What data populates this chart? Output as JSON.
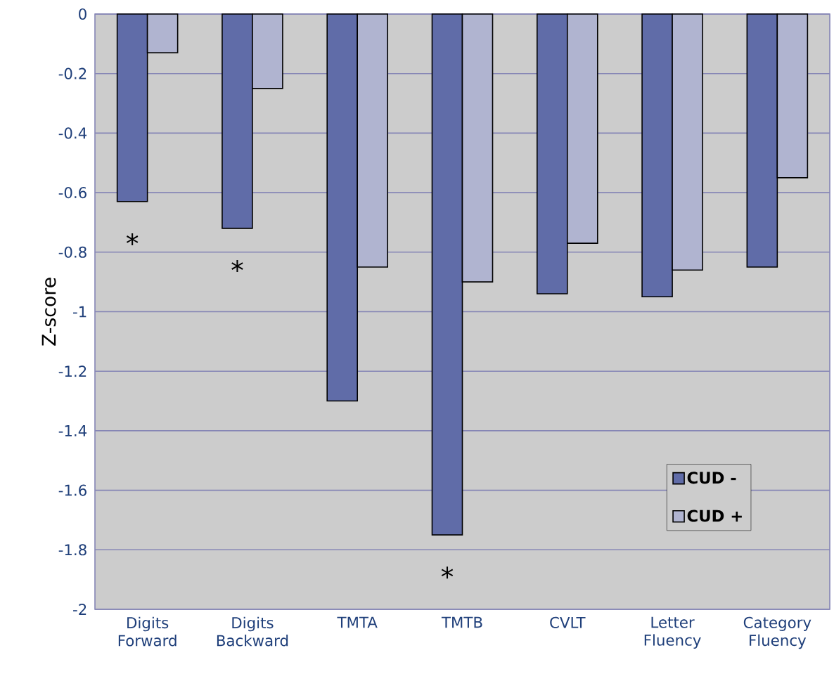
{
  "chart_data": {
    "type": "bar",
    "ylabel": "Z-score",
    "categories": [
      "Digits Forward",
      "Digits Backward",
      "TMTA",
      "TMTB",
      "CVLT",
      "Letter Fluency",
      "Category Fluency"
    ],
    "series": [
      {
        "name": "CUD -",
        "color": "#606ca8",
        "values": [
          -0.63,
          -0.72,
          -1.3,
          -1.75,
          -0.94,
          -0.95,
          -0.85
        ]
      },
      {
        "name": "CUD +",
        "color": "#b0b4d0",
        "values": [
          -0.13,
          -0.25,
          -0.85,
          -0.9,
          -0.77,
          -0.86,
          -0.55
        ]
      }
    ],
    "ylim": [
      -2,
      0
    ],
    "yticks": [
      -2,
      -1.8,
      -1.6,
      -1.4,
      -1.2,
      -1,
      -0.8,
      -0.6,
      -0.4,
      -0.2,
      0
    ],
    "grid": "y",
    "legend": "bottom right",
    "annotations": [
      {
        "text": "*",
        "x": "Digits Forward",
        "y": -0.63
      },
      {
        "text": "*",
        "x": "Digits Backward",
        "y": -0.72
      },
      {
        "text": "*",
        "x": "TMTB",
        "y": -1.75
      }
    ]
  }
}
